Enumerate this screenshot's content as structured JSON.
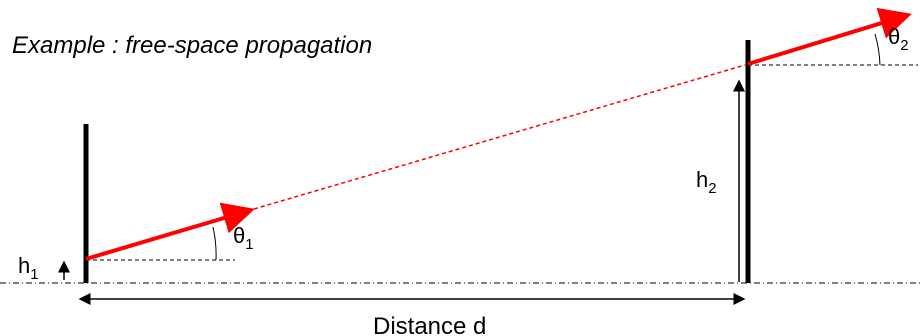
{
  "title": "Example : free-space propagation",
  "labels": {
    "h1": {
      "main": "h",
      "sub": "1"
    },
    "h2": {
      "main": "h",
      "sub": "2"
    },
    "theta1": {
      "main": "θ",
      "sub": "1"
    },
    "theta2": {
      "main": "θ",
      "sub": "2"
    },
    "distance": "Distance d"
  },
  "colors": {
    "ray": "#ff0000",
    "antenna": "#000000",
    "text": "#000000",
    "guide": "#000000"
  }
}
